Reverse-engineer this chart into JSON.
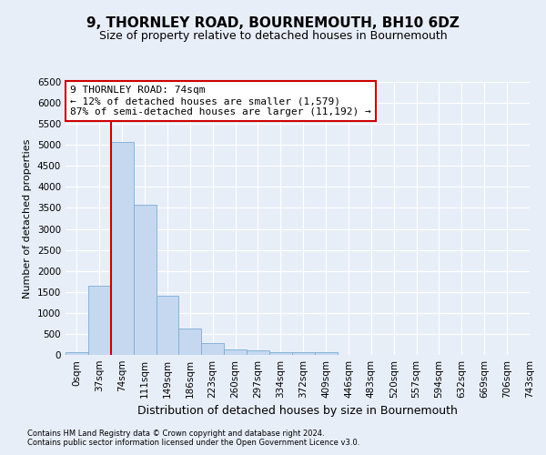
{
  "title": "9, THORNLEY ROAD, BOURNEMOUTH, BH10 6DZ",
  "subtitle": "Size of property relative to detached houses in Bournemouth",
  "xlabel": "Distribution of detached houses by size in Bournemouth",
  "ylabel": "Number of detached properties",
  "footer_line1": "Contains HM Land Registry data © Crown copyright and database right 2024.",
  "footer_line2": "Contains public sector information licensed under the Open Government Licence v3.0.",
  "bin_labels": [
    "0sqm",
    "37sqm",
    "74sqm",
    "111sqm",
    "149sqm",
    "186sqm",
    "223sqm",
    "260sqm",
    "297sqm",
    "334sqm",
    "372sqm",
    "409sqm",
    "446sqm",
    "483sqm",
    "520sqm",
    "557sqm",
    "594sqm",
    "632sqm",
    "669sqm",
    "706sqm",
    "743sqm"
  ],
  "bar_values": [
    70,
    1640,
    5060,
    3580,
    1400,
    620,
    290,
    135,
    100,
    75,
    60,
    55,
    0,
    0,
    0,
    0,
    0,
    0,
    0,
    0
  ],
  "bar_color": "#c5d8f0",
  "bar_edge_color": "#7aadd4",
  "red_line_index": 2,
  "red_line_color": "#cc0000",
  "annotation_line1": "9 THORNLEY ROAD: 74sqm",
  "annotation_line2": "← 12% of detached houses are smaller (1,579)",
  "annotation_line3": "87% of semi-detached houses are larger (11,192) →",
  "annotation_box_color": "#ffffff",
  "annotation_box_edge": "#cc0000",
  "ylim": [
    0,
    6500
  ],
  "yticks": [
    0,
    500,
    1000,
    1500,
    2000,
    2500,
    3000,
    3500,
    4000,
    4500,
    5000,
    5500,
    6000,
    6500
  ],
  "bg_color": "#e8eef8",
  "plot_bg_color": "#e8eef8",
  "grid_color": "#ffffff",
  "title_fontsize": 11,
  "subtitle_fontsize": 9,
  "xlabel_fontsize": 9,
  "ylabel_fontsize": 8,
  "tick_fontsize": 7.5,
  "footer_fontsize": 6
}
